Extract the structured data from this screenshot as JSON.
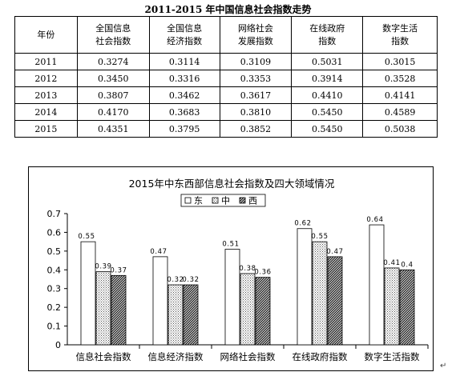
{
  "table": {
    "title": "2011-2015 年中国信息社会指数走势",
    "headers": [
      {
        "l1": "年份",
        "l2": ""
      },
      {
        "l1": "全国信息",
        "l2": "社会指数"
      },
      {
        "l1": "全国信息",
        "l2": "经济指数"
      },
      {
        "l1": "网络社会",
        "l2": "发展指数"
      },
      {
        "l1": "在线政府",
        "l2": "指数"
      },
      {
        "l1": "数字生活",
        "l2": "指数"
      }
    ],
    "rows": [
      [
        "2011",
        "0.3274",
        "0.3114",
        "0.3109",
        "0.5031",
        "0.3015"
      ],
      [
        "2012",
        "0.3450",
        "0.3316",
        "0.3353",
        "0.3914",
        "0.3528"
      ],
      [
        "2013",
        "0.3807",
        "0.3462",
        "0.3617",
        "0.4410",
        "0.4141"
      ],
      [
        "2014",
        "0.4170",
        "0.3683",
        "0.3810",
        "0.5450",
        "0.4589"
      ],
      [
        "2015",
        "0.4351",
        "0.3795",
        "0.3852",
        "0.5450",
        "0.5038"
      ]
    ]
  },
  "chart_data": {
    "type": "bar",
    "title": "2015年中东西部信息社会指数及四大领域情况",
    "categories": [
      "信息社会指数",
      "信息经济指数",
      "网络社会指数",
      "在线政府指数",
      "数字生活指数"
    ],
    "series": [
      {
        "name": "东",
        "values": [
          0.55,
          0.47,
          0.51,
          0.62,
          0.64
        ],
        "labels": [
          "0.55",
          "0.47",
          "0.51",
          "0.62",
          "0.64"
        ]
      },
      {
        "name": "中",
        "values": [
          0.39,
          0.32,
          0.38,
          0.55,
          0.41
        ],
        "labels": [
          "0.39",
          "0.32",
          "0.38",
          "0.55",
          "0.41"
        ]
      },
      {
        "name": "西",
        "values": [
          0.37,
          0.32,
          0.36,
          0.47,
          0.4
        ],
        "labels": [
          "0.37",
          "0.32",
          "0.36",
          "0.47",
          "0.4"
        ]
      }
    ],
    "ylim": [
      0,
      0.7
    ],
    "yticks": [
      "0",
      "0.1",
      "0.2",
      "0.3",
      "0.4",
      "0.5",
      "0.6",
      "0.7"
    ],
    "legend_position": "top-center",
    "grid": false,
    "xlabel": "",
    "ylabel": ""
  },
  "return_mark": "↵"
}
